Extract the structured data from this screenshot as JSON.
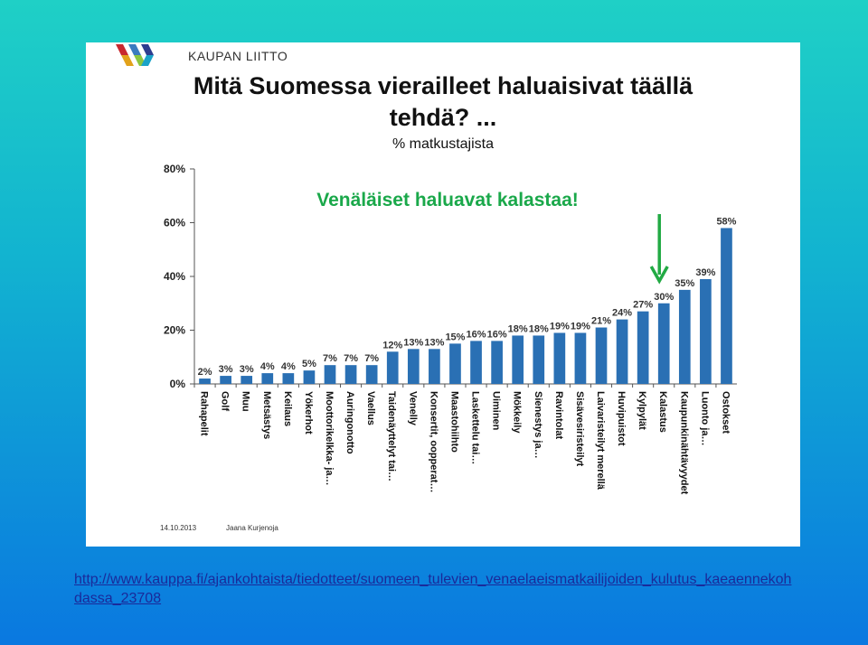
{
  "logo_text": "KAUPAN LIITTO",
  "chart_data": {
    "type": "bar",
    "title_line1": "Mitä Suomessa vierailleet haluaisivat täällä",
    "title_line2": "tehdä? ...",
    "subtitle": "% matkustajista",
    "annotation": "Venäläiset haluavat kalastaa!",
    "ylim": [
      0,
      80
    ],
    "yticks": [
      "0%",
      "20%",
      "40%",
      "60%",
      "80%"
    ],
    "ytick_values": [
      0,
      20,
      40,
      60,
      80
    ],
    "categories": [
      "Rahapelit",
      "Golf",
      "Muu",
      "Metsästys",
      "Keilaus",
      "Yökerhot",
      "Moottorikelkka- ja…",
      "Auringonotto",
      "Vaellus",
      "Taidenäyttelyt tai…",
      "Venelly",
      "Konsertit, oopperat…",
      "Maastohiihto",
      "Laskettelu tai…",
      "Uiminen",
      "Mökkeily",
      "Sienestys ja…",
      "Ravintolat",
      "Sisävesiristeilyt",
      "Laivaristeilyt merellä",
      "Huvipuistot",
      "Kylpylät",
      "Kalastus",
      "Kaupunkinähtävyydet",
      "Luonto ja…",
      "Ostokset"
    ],
    "values": [
      2,
      3,
      3,
      4,
      4,
      5,
      7,
      7,
      7,
      12,
      13,
      13,
      15,
      16,
      16,
      18,
      18,
      19,
      19,
      21,
      24,
      27,
      30,
      35,
      39,
      58
    ],
    "value_labels": [
      "2%",
      "3%",
      "3%",
      "4%",
      "4%",
      "5%",
      "7%",
      "7%",
      "7%",
      "12%",
      "13%",
      "13%",
      "15%",
      "16%",
      "16%",
      "18%",
      "18%",
      "19%",
      "19%",
      "21%",
      "24%",
      "27%",
      "30%",
      "35%",
      "39%",
      "58%"
    ],
    "highlight_category": "Kalastus",
    "colors": {
      "bar": "#2a70b4",
      "annotation": "#1aa84a",
      "arrow": "#22aa44",
      "axis": "#555555"
    }
  },
  "footer": {
    "date": "14.10.2013",
    "author": "Jaana Kurjenoja"
  },
  "link_text": "http://www.kauppa.fi/ajankohtaista/tiedotteet/suomeen_tulevien_venaelaeismatkailijoiden_kulutus_kaeaennekohdassa_23708"
}
